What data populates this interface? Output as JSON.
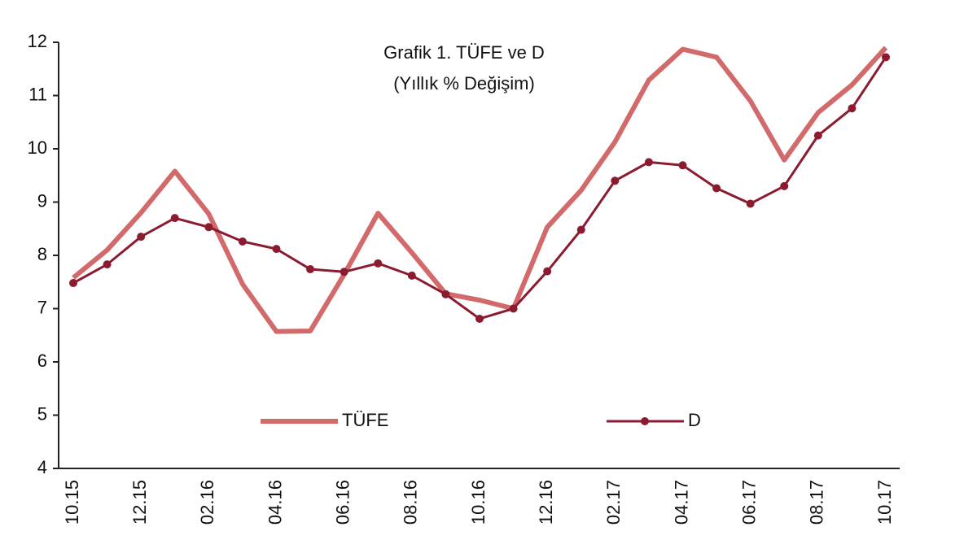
{
  "chart_data": {
    "type": "line",
    "title": "Grafik 1. TÜFE ve D",
    "subtitle": "(Yıllık % Değişim)",
    "categories": [
      "10.15",
      null,
      "12.15",
      null,
      "02.16",
      null,
      "04.16",
      null,
      "06.16",
      null,
      "08.16",
      null,
      "10.16",
      null,
      "12.16",
      null,
      "02.17",
      null,
      "04.17",
      null,
      "06.17",
      null,
      "08.17",
      null,
      "10.17"
    ],
    "series": [
      {
        "name": "TÜFE",
        "color": "#d26a6b",
        "marker": false,
        "values": [
          7.58,
          8.1,
          8.8,
          9.58,
          8.78,
          7.46,
          6.57,
          6.58,
          7.64,
          8.79,
          8.05,
          7.28,
          7.16,
          7.0,
          8.53,
          9.22,
          10.13,
          11.29,
          11.87,
          11.72,
          10.9,
          9.79,
          10.68,
          11.2,
          11.9
        ]
      },
      {
        "name": "D",
        "color": "#8b1c30",
        "marker": true,
        "values": [
          7.48,
          7.83,
          8.35,
          8.7,
          8.53,
          8.26,
          8.12,
          7.74,
          7.69,
          7.85,
          7.62,
          7.27,
          6.81,
          7.0,
          7.7,
          8.48,
          9.4,
          9.75,
          9.69,
          9.26,
          8.97,
          9.3,
          10.25,
          10.76,
          11.72
        ]
      }
    ],
    "ylim": [
      4,
      12
    ],
    "yticks": [
      4,
      5,
      6,
      7,
      8,
      9,
      10,
      11,
      12
    ],
    "grid": false
  }
}
